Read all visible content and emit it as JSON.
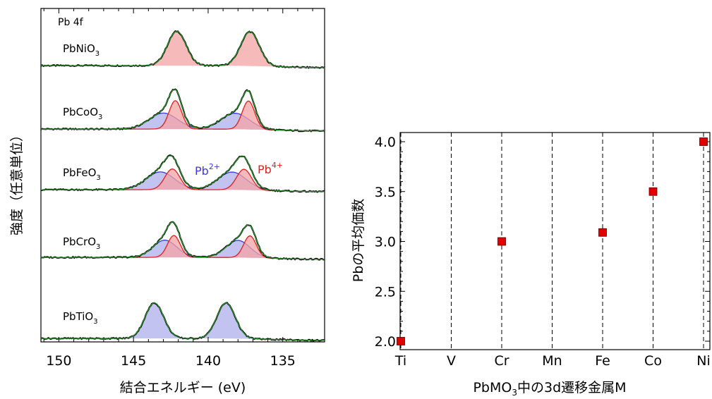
{
  "chart_data": [
    {
      "type": "line",
      "title": "",
      "panel_label": "Pb 4f",
      "xlabel": "結合エネルギー (eV)",
      "ylabel": "強度（任意単位）",
      "xlim": [
        151.2,
        132.2
      ],
      "x_axis_reversed": true,
      "x_ticks": [
        150,
        145,
        140,
        135
      ],
      "y_ticks": [],
      "grid": false,
      "colors": {
        "data": "#000000",
        "total_fit": "#2c9b2c",
        "pb4_fill": "#f4a3a3",
        "pb4_line": "#e21d1d",
        "pb2_fill": "#b9b9ef",
        "pb2_line": "#3a3ae0"
      },
      "component_labels": {
        "pb2": {
          "base": "Pb",
          "sup": "2+",
          "color": "#3a3ae0"
        },
        "pb4": {
          "base": "Pb",
          "sup": "4+",
          "color": "#e21d1d"
        }
      },
      "series": [
        {
          "name": "PbNiO3",
          "label_base": "PbNiO",
          "label_sub": "3",
          "baseline": 0.1,
          "peaks": [
            {
              "component": "pb4",
              "centers": [
                142.1,
                137.2
              ],
              "amplitude": 0.58,
              "width": 0.62
            }
          ]
        },
        {
          "name": "PbCoO3",
          "label_base": "PbCoO",
          "label_sub": "3",
          "baseline": 0.1,
          "peaks": [
            {
              "component": "pb2",
              "centers": [
                143.0,
                138.2
              ],
              "amplitude": 0.27,
              "width": 0.95
            },
            {
              "component": "pb4",
              "centers": [
                142.2,
                137.3
              ],
              "amplitude": 0.48,
              "width": 0.42
            }
          ]
        },
        {
          "name": "PbFeO3",
          "label_base": "PbFeO",
          "label_sub": "3",
          "baseline": 0.08,
          "peaks": [
            {
              "component": "pb2",
              "centers": [
                143.2,
                138.4
              ],
              "amplitude": 0.3,
              "width": 0.95
            },
            {
              "component": "pb4",
              "centers": [
                142.4,
                137.6
              ],
              "amplitude": 0.35,
              "width": 0.5
            }
          ]
        },
        {
          "name": "PbCrO3",
          "label_base": "PbCrO",
          "label_sub": "3",
          "baseline": 0.1,
          "peaks": [
            {
              "component": "pb2",
              "centers": [
                142.9,
                138.0
              ],
              "amplitude": 0.29,
              "width": 0.8
            },
            {
              "component": "pb4",
              "centers": [
                142.3,
                137.2
              ],
              "amplitude": 0.37,
              "width": 0.42
            }
          ]
        },
        {
          "name": "PbTiO3",
          "label_base": "PbTiO",
          "label_sub": "3",
          "baseline": 0.06,
          "peaks": [
            {
              "component": "pb2",
              "centers": [
                143.6,
                138.8
              ],
              "amplitude": 0.6,
              "width": 0.62
            }
          ]
        }
      ]
    },
    {
      "type": "scatter",
      "title": "",
      "xlabel": "PbMO3中の3d遷移金属M",
      "xlabel_parts": {
        "pre": "PbMO",
        "sub": "3",
        "post": "中の3d遷移金属M"
      },
      "ylabel": "Pbの平均価数",
      "categories": [
        "Ti",
        "V",
        "Cr",
        "Mn",
        "Fe",
        "Co",
        "Ni"
      ],
      "ylim": [
        1.94,
        4.06
      ],
      "y_ticks": [
        2.0,
        2.5,
        3.0,
        3.5,
        4.0
      ],
      "y_tick_labels": [
        "2.0",
        "2.5",
        "3.0",
        "3.5",
        "4.0"
      ],
      "vertical_dashed_lines": true,
      "marker_color": "#e00000",
      "points": [
        {
          "x": "Ti",
          "y": 2.0
        },
        {
          "x": "Cr",
          "y": 3.0
        },
        {
          "x": "Fe",
          "y": 3.09
        },
        {
          "x": "Co",
          "y": 3.5
        },
        {
          "x": "Ni",
          "y": 4.0
        }
      ]
    }
  ]
}
